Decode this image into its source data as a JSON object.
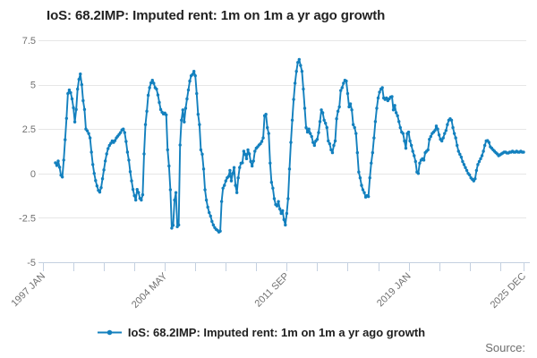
{
  "chart_data": {
    "type": "line",
    "title": "IoS: 68.2IMP: Imputed rent: 1m on 1m a yr ago growth",
    "grid": true,
    "legend_position": "bottom",
    "y_axis": {
      "min": -5,
      "max": 7.5,
      "ticks": [
        7.5,
        5,
        2.5,
        0,
        -2.5,
        -5
      ],
      "tick_labels": [
        "7.5",
        "5",
        "2.5",
        "0",
        "-2.5",
        "-5"
      ]
    },
    "x_axis": {
      "start_label": "1997 JAN",
      "end_label": "2025 DEC",
      "total_months": 348,
      "tick_interval_months": 22,
      "labeled_ticks": [
        {
          "month": 0,
          "label": "1997 JAN"
        },
        {
          "month": 88,
          "label": "2004 MAY"
        },
        {
          "month": 176,
          "label": "2011 SEP"
        },
        {
          "month": 264,
          "label": "2019 JAN"
        },
        {
          "month": 347,
          "label": "2025 DEC"
        }
      ]
    },
    "series": [
      {
        "name": "IoS: 68.2IMP: Imputed rent: 1m on 1m a yr ago growth",
        "color": "#1380be",
        "frequency": "monthly",
        "start_period": "1997 OCT",
        "start_month_offset": 9,
        "values": [
          0.6,
          0.45,
          0.7,
          0.35,
          -0.1,
          -0.2,
          0.75,
          1.9,
          3.1,
          4.5,
          4.7,
          4.55,
          4.2,
          3.7,
          2.9,
          3.6,
          4.75,
          5.3,
          5.6,
          5.0,
          4.1,
          3.6,
          2.5,
          2.4,
          2.25,
          2.0,
          1.2,
          0.5,
          0.0,
          -0.4,
          -0.7,
          -0.95,
          -1.05,
          -0.8,
          -0.3,
          0.2,
          0.7,
          1.1,
          1.4,
          1.58,
          1.7,
          1.83,
          1.75,
          1.85,
          2.0,
          2.1,
          2.2,
          2.3,
          2.45,
          2.5,
          2.3,
          1.8,
          1.2,
          0.75,
          0.1,
          -0.42,
          -0.9,
          -1.25,
          -1.5,
          -0.9,
          -1.07,
          -1.4,
          -1.5,
          -1.2,
          1.1,
          2.75,
          3.5,
          4.4,
          4.83,
          5.1,
          5.25,
          5.08,
          4.83,
          4.75,
          4.42,
          4.0,
          3.6,
          3.45,
          3.35,
          3.4,
          3.3,
          1.33,
          0.42,
          -0.92,
          -3.08,
          -2.92,
          -1.5,
          -1.08,
          -3.0,
          -2.9,
          1.6,
          3.0,
          3.58,
          2.9,
          3.67,
          4.2,
          4.7,
          5.2,
          5.5,
          5.58,
          5.75,
          5.5,
          4.5,
          3.33,
          2.75,
          1.33,
          1.08,
          0.25,
          -0.92,
          -1.5,
          -1.9,
          -2.2,
          -2.4,
          -2.7,
          -2.9,
          -3.05,
          -3.15,
          -3.2,
          -3.3,
          -3.25,
          -1.58,
          -0.83,
          -0.67,
          -0.42,
          -0.25,
          -0.17,
          0.17,
          -0.42,
          0.0,
          0.33,
          -0.67,
          -1.08,
          -0.25,
          0.33,
          0.58,
          0.6,
          1.25,
          1.08,
          0.83,
          1.33,
          1.1,
          0.67,
          0.42,
          0.7,
          1.25,
          1.42,
          1.5,
          1.6,
          1.67,
          1.8,
          2.0,
          3.25,
          3.33,
          2.58,
          2.25,
          0.58,
          -0.5,
          -0.83,
          -1.42,
          -1.75,
          -1.83,
          -1.58,
          -2.0,
          -2.25,
          -2.1,
          -2.6,
          -2.9,
          -2.25,
          -1.42,
          0.25,
          1.75,
          3.0,
          4.17,
          5.08,
          5.75,
          6.25,
          6.42,
          6.08,
          5.75,
          4.75,
          3.67,
          2.58,
          2.33,
          2.5,
          2.25,
          2.08,
          1.75,
          1.58,
          1.83,
          1.92,
          2.3,
          2.92,
          3.58,
          3.42,
          3.0,
          2.83,
          2.58,
          1.83,
          1.67,
          1.33,
          1.17,
          1.58,
          1.83,
          3.08,
          3.5,
          3.75,
          4.67,
          4.83,
          5.08,
          5.25,
          5.2,
          4.5,
          3.75,
          3.92,
          3.58,
          2.75,
          2.58,
          2.25,
          1.17,
          0.08,
          -0.25,
          -0.67,
          -0.92,
          -1.08,
          -1.33,
          -1.25,
          -1.3,
          -0.25,
          0.58,
          1.17,
          2.0,
          2.92,
          3.67,
          4.25,
          4.58,
          4.75,
          4.83,
          4.25,
          4.17,
          4.25,
          4.1,
          4.2,
          4.3,
          4.33,
          3.58,
          3.83,
          3.42,
          3.25,
          2.92,
          2.58,
          2.33,
          2.25,
          1.83,
          1.42,
          2.25,
          2.33,
          1.83,
          1.58,
          1.25,
          1.0,
          0.67,
          0.08,
          0.0,
          0.58,
          0.75,
          0.83,
          0.75,
          1.17,
          1.25,
          1.33,
          1.92,
          2.08,
          2.25,
          2.33,
          2.42,
          2.67,
          2.5,
          2.17,
          1.92,
          1.83,
          2.0,
          2.25,
          2.42,
          2.75,
          3.0,
          3.08,
          3.0,
          2.58,
          2.25,
          2.0,
          1.58,
          1.25,
          1.08,
          0.92,
          0.67,
          0.5,
          0.33,
          0.17,
          0.0,
          -0.08,
          -0.25,
          -0.33,
          -0.42,
          -0.3,
          0.17,
          0.5,
          0.67,
          0.83,
          1.0,
          1.25,
          1.58,
          1.83,
          1.85,
          1.75,
          1.5,
          1.42,
          1.33,
          1.25,
          1.17,
          1.1,
          1.0,
          1.05,
          1.1,
          1.15,
          1.2,
          1.2,
          1.15,
          1.15,
          1.2,
          1.2,
          1.25,
          1.2,
          1.2,
          1.25,
          1.2,
          1.2,
          1.25,
          1.2,
          1.2
        ]
      }
    ]
  },
  "legend": {
    "label": "IoS: 68.2IMP: Imputed rent: 1m on 1m a yr ago growth"
  },
  "source": {
    "label": "Source:"
  },
  "colors": {
    "series": "#1380be",
    "gridline": "#e6e6e6",
    "axis": "#c4d0e0",
    "axis_label": "#707070",
    "title": "#222222"
  }
}
